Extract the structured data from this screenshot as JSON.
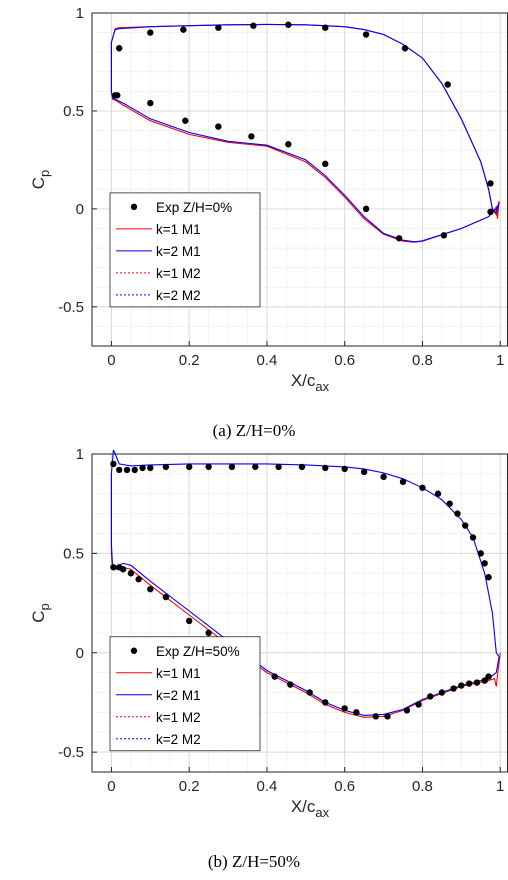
{
  "chart_data": [
    {
      "type": "line",
      "xlabel": "X/c",
      "xlabel_sub": "ax",
      "ylabel": "C",
      "ylabel_sub": "p",
      "xlim": [
        -0.05,
        1.02
      ],
      "ylim": [
        -0.7,
        1.0
      ],
      "xticks": [
        0,
        0.2,
        0.4,
        0.6,
        0.8,
        1
      ],
      "xtick_labels": [
        "0",
        "0.2",
        "0.4",
        "0.6",
        "0.8",
        "1"
      ],
      "yticks": [
        -0.5,
        0,
        0.5,
        1
      ],
      "ytick_labels": [
        "-0.5",
        "0",
        "0.5",
        "1"
      ],
      "grid": true,
      "legend_position": "bottom-left",
      "caption": "(a) Z/H=0%",
      "experiment": {
        "name": "Exp Z/H=0%",
        "color": "#000000",
        "x": [
          0.015,
          0.1,
          0.19,
          0.275,
          0.36,
          0.455,
          0.55,
          0.655,
          0.74,
          0.855,
          0.975,
          0.01,
          0.02,
          0.1,
          0.185,
          0.275,
          0.365,
          0.455,
          0.55,
          0.655,
          0.755,
          0.865,
          0.975
        ],
        "y": [
          0.58,
          0.54,
          0.45,
          0.42,
          0.37,
          0.33,
          0.23,
          0.0,
          -0.15,
          -0.135,
          -0.015,
          0.58,
          0.82,
          0.9,
          0.915,
          0.925,
          0.935,
          0.94,
          0.925,
          0.89,
          0.82,
          0.635,
          0.13
        ]
      },
      "series": [
        {
          "name": "k=1 M1",
          "color": "#ff0000",
          "dash": "",
          "x": [
            0.01,
            0.0,
            0.0,
            0.003,
            0.01,
            0.03,
            0.1,
            0.2,
            0.3,
            0.4,
            0.5,
            0.55,
            0.6,
            0.65,
            0.7,
            0.75,
            0.78,
            0.8,
            0.9,
            0.97,
            0.99,
            0.993,
            0.997
          ],
          "y": [
            0.92,
            0.85,
            0.6,
            0.56,
            0.555,
            0.53,
            0.45,
            0.38,
            0.34,
            0.32,
            0.24,
            0.16,
            0.06,
            -0.05,
            -0.13,
            -0.165,
            -0.17,
            -0.165,
            -0.1,
            -0.04,
            0.01,
            -0.05,
            0.04
          ],
          "upper": {
            "x": [
              0.01,
              0.02,
              0.1,
              0.2,
              0.3,
              0.4,
              0.5,
              0.6,
              0.65,
              0.7,
              0.75,
              0.8,
              0.85,
              0.9,
              0.95,
              0.97,
              0.98,
              0.99,
              0.997
            ],
            "y": [
              0.92,
              0.925,
              0.93,
              0.935,
              0.94,
              0.942,
              0.94,
              0.93,
              0.915,
              0.89,
              0.84,
              0.77,
              0.64,
              0.46,
              0.24,
              0.1,
              0.0,
              -0.03,
              0.04
            ]
          }
        },
        {
          "name": "k=2 M1",
          "color": "#0000ff",
          "dash": "",
          "x": [
            0.01,
            0.0,
            0.0,
            0.003,
            0.01,
            0.03,
            0.1,
            0.2,
            0.3,
            0.4,
            0.5,
            0.55,
            0.6,
            0.65,
            0.7,
            0.75,
            0.78,
            0.8,
            0.9,
            0.97,
            0.99,
            0.997
          ],
          "y": [
            0.92,
            0.85,
            0.6,
            0.565,
            0.56,
            0.54,
            0.46,
            0.39,
            0.345,
            0.325,
            0.25,
            0.17,
            0.07,
            -0.04,
            -0.125,
            -0.16,
            -0.168,
            -0.163,
            -0.1,
            -0.04,
            0.0,
            0.03
          ],
          "upper": {
            "x": [
              0.01,
              0.02,
              0.1,
              0.2,
              0.3,
              0.4,
              0.5,
              0.6,
              0.65,
              0.7,
              0.75,
              0.8,
              0.85,
              0.9,
              0.95,
              0.97,
              0.98,
              0.99,
              0.997
            ],
            "y": [
              0.915,
              0.92,
              0.93,
              0.935,
              0.94,
              0.942,
              0.94,
              0.93,
              0.915,
              0.89,
              0.84,
              0.77,
              0.64,
              0.46,
              0.24,
              0.1,
              0.0,
              -0.02,
              0.03
            ]
          }
        },
        {
          "name": "k=1 M2",
          "color": "#ff0000",
          "dash": "2,2",
          "x": [],
          "y": []
        },
        {
          "name": "k=2 M2",
          "color": "#0000ff",
          "dash": "2,2",
          "x": [],
          "y": []
        }
      ]
    },
    {
      "type": "line",
      "xlabel": "X/c",
      "xlabel_sub": "ax",
      "ylabel": "C",
      "ylabel_sub": "p",
      "xlim": [
        -0.05,
        1.02
      ],
      "ylim": [
        -0.6,
        1.0
      ],
      "xticks": [
        0,
        0.2,
        0.4,
        0.6,
        0.8,
        1
      ],
      "xtick_labels": [
        "0",
        "0.2",
        "0.4",
        "0.6",
        "0.8",
        "1"
      ],
      "yticks": [
        -0.5,
        0,
        0.5,
        1
      ],
      "ytick_labels": [
        "-0.5",
        "0",
        "0.5",
        "1"
      ],
      "grid": true,
      "legend_position": "bottom-left",
      "caption": "(b) Z/H=50%",
      "experiment": {
        "name": "Exp Z/H=50%",
        "color": "#000000",
        "x": [
          0.005,
          0.02,
          0.04,
          0.06,
          0.08,
          0.1,
          0.14,
          0.2,
          0.25,
          0.31,
          0.37,
          0.43,
          0.49,
          0.55,
          0.6,
          0.65,
          0.7,
          0.75,
          0.8,
          0.84,
          0.87,
          0.89,
          0.91,
          0.93,
          0.95,
          0.96,
          0.97,
          0.005,
          0.02,
          0.03,
          0.05,
          0.07,
          0.1,
          0.14,
          0.2,
          0.25,
          0.3,
          0.37,
          0.42,
          0.46,
          0.51,
          0.55,
          0.6,
          0.63,
          0.68,
          0.71,
          0.76,
          0.79,
          0.82,
          0.85,
          0.88,
          0.9,
          0.92,
          0.94,
          0.96,
          0.97
        ],
        "y": [
          0.95,
          0.92,
          0.92,
          0.92,
          0.93,
          0.93,
          0.935,
          0.935,
          0.935,
          0.935,
          0.935,
          0.935,
          0.935,
          0.93,
          0.925,
          0.91,
          0.885,
          0.86,
          0.83,
          0.8,
          0.75,
          0.7,
          0.64,
          0.58,
          0.5,
          0.45,
          0.38,
          0.43,
          0.43,
          0.42,
          0.4,
          0.37,
          0.32,
          0.28,
          0.16,
          0.1,
          0.05,
          -0.06,
          -0.12,
          -0.16,
          -0.2,
          -0.25,
          -0.28,
          -0.3,
          -0.32,
          -0.32,
          -0.29,
          -0.26,
          -0.22,
          -0.2,
          -0.18,
          -0.165,
          -0.155,
          -0.15,
          -0.14,
          -0.12
        ]
      },
      "series": [
        {
          "name": "k=1 M1",
          "color": "#ff0000",
          "dash": "",
          "x": [
            0.0,
            0.0,
            0.003,
            0.01,
            0.03,
            0.05,
            0.1,
            0.2,
            0.3,
            0.4,
            0.5,
            0.55,
            0.6,
            0.65,
            0.7,
            0.75,
            0.8,
            0.9,
            0.97,
            0.985,
            0.99,
            0.995,
            1.0
          ],
          "y": [
            0.9,
            0.5,
            0.42,
            0.42,
            0.43,
            0.42,
            0.34,
            0.19,
            0.04,
            -0.1,
            -0.2,
            -0.26,
            -0.3,
            -0.325,
            -0.32,
            -0.29,
            -0.24,
            -0.17,
            -0.14,
            -0.13,
            -0.17,
            -0.08,
            0.0
          ]
        },
        {
          "name": "k=2 M1",
          "color": "#0000ff",
          "dash": "",
          "x": [
            0.0,
            0.0,
            0.003,
            0.01,
            0.02,
            0.03,
            0.05,
            0.1,
            0.2,
            0.3,
            0.4,
            0.5,
            0.55,
            0.6,
            0.65,
            0.7,
            0.75,
            0.8,
            0.9,
            0.97,
            0.99,
            0.997
          ],
          "y": [
            0.9,
            0.55,
            0.43,
            0.43,
            0.44,
            0.45,
            0.44,
            0.36,
            0.21,
            0.06,
            -0.09,
            -0.19,
            -0.25,
            -0.29,
            -0.315,
            -0.31,
            -0.285,
            -0.235,
            -0.165,
            -0.13,
            -0.1,
            -0.02
          ],
          "upper": {
            "x": [
              0.0,
              0.005,
              0.01,
              0.02,
              0.05,
              0.1,
              0.2,
              0.3,
              0.4,
              0.5,
              0.6,
              0.65,
              0.7,
              0.75,
              0.8,
              0.85,
              0.9,
              0.93,
              0.96,
              0.98,
              0.99,
              0.997
            ],
            "y": [
              0.9,
              1.02,
              1.0,
              0.95,
              0.94,
              0.945,
              0.95,
              0.95,
              0.95,
              0.945,
              0.935,
              0.925,
              0.905,
              0.875,
              0.83,
              0.77,
              0.67,
              0.58,
              0.4,
              0.2,
              0.0,
              -0.02
            ]
          }
        },
        {
          "name": "k=1 M2",
          "color": "#ff0000",
          "dash": "2,2",
          "x": [],
          "y": []
        },
        {
          "name": "k=2 M2",
          "color": "#0000ff",
          "dash": "2,2",
          "x": [],
          "y": []
        }
      ]
    }
  ]
}
